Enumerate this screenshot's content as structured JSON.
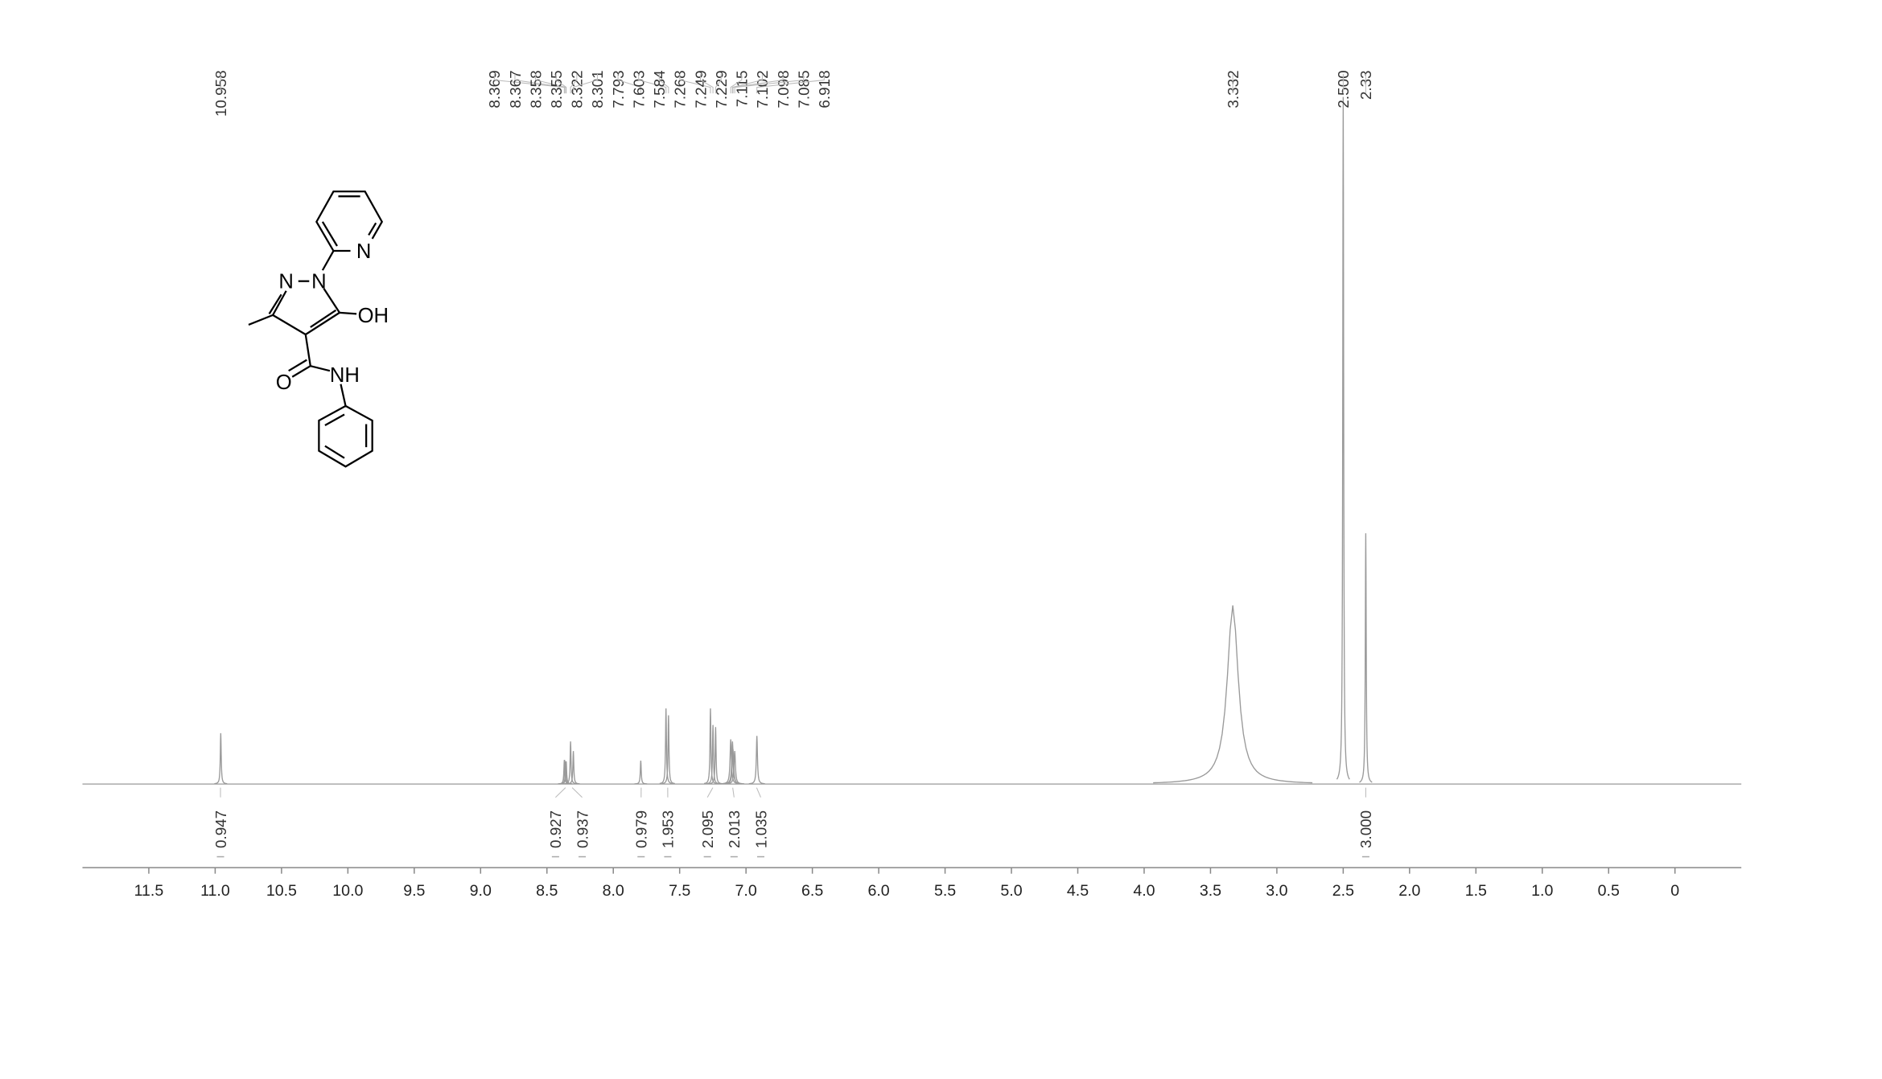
{
  "chart_data": {
    "type": "nmr",
    "x": [
      10.958,
      8.369,
      8.367,
      8.358,
      8.355,
      8.322,
      8.301,
      7.793,
      7.603,
      7.584,
      7.268,
      7.249,
      7.229,
      7.115,
      7.102,
      7.098,
      7.085,
      6.918,
      3.332,
      {
        "value": 2.5,
        "label": "2.500"
      },
      2.33
    ],
    "values": [
      7.4,
      3.5,
      3.5,
      3.3,
      3.3,
      6.2,
      4.8,
      3.4,
      11,
      10,
      11,
      8.6,
      8.3,
      6.5,
      6.2,
      5.1,
      4.8,
      7,
      26,
      100,
      36.5
    ],
    "peak_widths": [
      0.004,
      0.004,
      0.004,
      0.004,
      0.004,
      0.004,
      0.004,
      0.004,
      0.004,
      0.004,
      0.004,
      0.004,
      0.004,
      0.006,
      0.006,
      0.006,
      0.006,
      0.005,
      0.05,
      0.004,
      0.004
    ],
    "integrals": [
      0.947,
      0.927,
      0.937,
      0.979,
      1.953,
      2.095,
      2.013,
      1.035,
      {
        "value": 3,
        "label": "3.000"
      }
    ],
    "integral_x": [
      10.96,
      8.36,
      8.31,
      7.79,
      7.59,
      7.25,
      7.1,
      6.92,
      2.33
    ],
    "xlim": [
      12.0,
      -0.5
    ],
    "xticks": [
      11.5,
      {
        "value": 11,
        "label": "11.0"
      },
      10.5,
      {
        "value": 10,
        "label": "10.0"
      },
      9.5,
      {
        "value": 9,
        "label": "9.0"
      },
      8.5,
      {
        "value": 8,
        "label": "8.0"
      },
      7.5,
      {
        "value": 7,
        "label": "7.0"
      },
      6.5,
      {
        "value": 6,
        "label": "6.0"
      },
      5.5,
      {
        "value": 5,
        "label": "5.0"
      },
      4.5,
      {
        "value": 4,
        "label": "4.0"
      },
      3.5,
      {
        "value": 3,
        "label": "3.0"
      },
      2.5,
      {
        "value": 2,
        "label": "2.0"
      },
      1.5,
      {
        "value": 1,
        "label": "1.0"
      },
      0.5,
      0
    ],
    "ylim": [
      0,
      100
    ],
    "color": "#9a9a9a",
    "structure_labels": [
      "N",
      "N",
      "N",
      "OH",
      "O",
      "NH"
    ]
  }
}
